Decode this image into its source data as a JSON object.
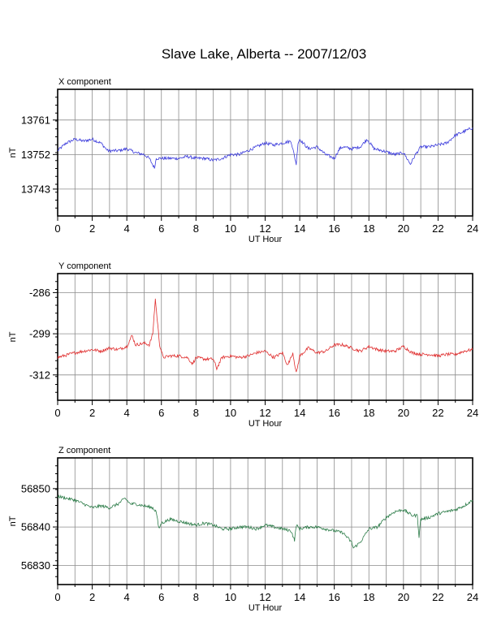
{
  "title": "Slave Lake, Alberta -- 2007/12/03",
  "chart_data": [
    {
      "type": "line",
      "panel_title": "X component",
      "xlabel": "UT Hour",
      "ylabel": "nT",
      "xlim": [
        0,
        24
      ],
      "ylim": [
        13736,
        13769
      ],
      "xticks": [
        0,
        2,
        4,
        6,
        8,
        10,
        12,
        14,
        16,
        18,
        20,
        22,
        24
      ],
      "yticks": [
        13743,
        13752,
        13761
      ],
      "grid": true,
      "color": "#3b3bdc",
      "series": [
        {
          "x": [
            0,
            0.5,
            1,
            1.5,
            2,
            2.5,
            2.9,
            3.1,
            3.5,
            4,
            4.5,
            5,
            5.3,
            5.6,
            5.7,
            5.8,
            6,
            6.5,
            7,
            7.5,
            8,
            8.5,
            9,
            9.5,
            10,
            10.5,
            11,
            11.5,
            12,
            12.5,
            13,
            13.5,
            13.8,
            13.9,
            14,
            14.5,
            15,
            15.5,
            16,
            16.3,
            16.5,
            17,
            17.5,
            17.9,
            18.3,
            18.8,
            19.5,
            20,
            20.4,
            20.7,
            21,
            21.5,
            22,
            22.5,
            23,
            23.5,
            24
          ],
          "y": [
            13753,
            13755,
            13756,
            13755.5,
            13756,
            13755,
            13753,
            13753,
            13753,
            13753.5,
            13752.5,
            13752,
            13751,
            13748.5,
            13751,
            13751,
            13751,
            13751,
            13751,
            13751.5,
            13751,
            13751,
            13750.5,
            13751,
            13752,
            13752,
            13753,
            13754,
            13755,
            13754.5,
            13755,
            13755.5,
            13749.5,
            13755,
            13756,
            13753.5,
            13754,
            13752,
            13751,
            13753.5,
            13754,
            13753.5,
            13754,
            13756,
            13753.5,
            13753,
            13752,
            13752.5,
            13749.5,
            13752,
            13754,
            13754,
            13754.5,
            13755,
            13757,
            13758,
            13759
          ]
        }
      ]
    },
    {
      "type": "line",
      "panel_title": "Y component",
      "xlabel": "UT Hour",
      "ylabel": "nT",
      "xlim": [
        0,
        24
      ],
      "ylim": [
        -320,
        -280
      ],
      "xticks": [
        0,
        2,
        4,
        6,
        8,
        10,
        12,
        14,
        16,
        18,
        20,
        22,
        24
      ],
      "yticks": [
        -286,
        -299,
        -312
      ],
      "grid": true,
      "color": "#e03030",
      "series": [
        {
          "x": [
            0,
            1,
            2,
            2.5,
            3,
            3.5,
            4,
            4.3,
            4.5,
            5,
            5.3,
            5.5,
            5.65,
            5.75,
            5.9,
            6.1,
            6.5,
            7,
            7.5,
            7.8,
            8,
            8.5,
            9,
            9.2,
            9.5,
            10,
            10.5,
            11,
            11.5,
            12,
            12.5,
            13,
            13.3,
            13.6,
            13.8,
            14,
            14.5,
            15,
            15.5,
            16,
            16.5,
            17,
            17.5,
            18,
            18.5,
            19,
            19.5,
            20,
            20.5,
            21,
            21.5,
            22,
            22.5,
            23,
            23.5,
            24
          ],
          "y": [
            -306.5,
            -305,
            -304,
            -304.5,
            -303.5,
            -304,
            -303,
            -299.5,
            -302.5,
            -302,
            -302.5,
            -299,
            -288,
            -294,
            -302.5,
            -306.5,
            -306,
            -306,
            -306.5,
            -308.5,
            -306.5,
            -307,
            -307,
            -310,
            -306.5,
            -306,
            -306.5,
            -306,
            -305,
            -304.5,
            -306.5,
            -305,
            -309,
            -305,
            -311.5,
            -306,
            -303.5,
            -305,
            -304.5,
            -302.5,
            -302.5,
            -303.5,
            -304.5,
            -303,
            -304,
            -304.5,
            -304.5,
            -303,
            -305,
            -305.5,
            -305.5,
            -306,
            -305.5,
            -305.5,
            -304.5,
            -304
          ]
        }
      ]
    },
    {
      "type": "line",
      "panel_title": "Z component",
      "xlabel": "UT Hour",
      "ylabel": "nT",
      "xlim": [
        0,
        24
      ],
      "ylim": [
        56825,
        56858
      ],
      "xticks": [
        0,
        2,
        4,
        6,
        8,
        10,
        12,
        14,
        16,
        18,
        20,
        22,
        24
      ],
      "yticks": [
        56830,
        56840,
        56850
      ],
      "grid": true,
      "color": "#2e7d4a",
      "series": [
        {
          "x": [
            0,
            0.5,
            1,
            1.5,
            2,
            2.5,
            3,
            3.5,
            3.9,
            4.2,
            4.5,
            5,
            5.5,
            5.7,
            5.85,
            6,
            6.5,
            7,
            7.5,
            8,
            8.5,
            9,
            9.5,
            10,
            10.5,
            11,
            11.5,
            12,
            12.5,
            13,
            13.5,
            13.7,
            13.8,
            14,
            14.5,
            15,
            15.5,
            16,
            16.5,
            17,
            17.1,
            17.5,
            18,
            18.5,
            19,
            19.5,
            20,
            20.5,
            20.8,
            20.9,
            21,
            21.5,
            22,
            22.5,
            23,
            23.5,
            24
          ],
          "y": [
            56848,
            56847.5,
            56847,
            56846,
            56845,
            56845.5,
            56845,
            56846,
            56847.5,
            56846,
            56846,
            56845.5,
            56845,
            56844,
            56839.5,
            56841,
            56842,
            56841.5,
            56841,
            56840.5,
            56841,
            56840.5,
            56839.5,
            56839.5,
            56840,
            56840,
            56839.5,
            56840.5,
            56840,
            56839.5,
            56839,
            56836.5,
            56840.5,
            56839.5,
            56840,
            56840,
            56839.5,
            56839,
            56838.5,
            56836,
            56834.5,
            56836,
            56839.5,
            56840,
            56842.5,
            56844,
            56844.5,
            56843,
            56843,
            56837.5,
            56842,
            56842.5,
            56843.5,
            56844,
            56844.5,
            56845.5,
            56847
          ]
        }
      ]
    }
  ]
}
